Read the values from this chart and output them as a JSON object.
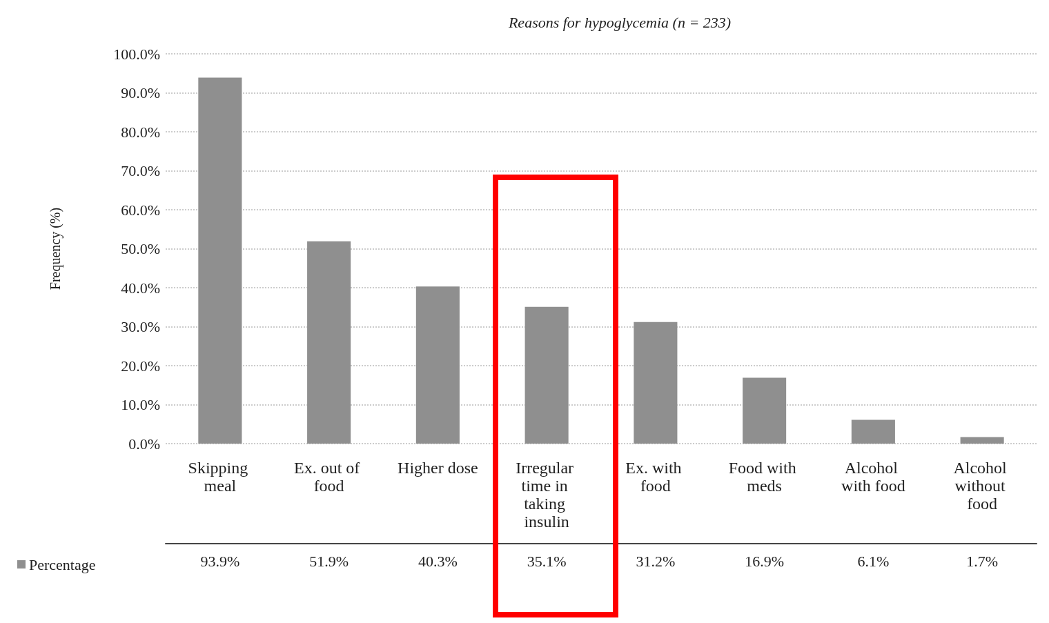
{
  "chart_data": {
    "type": "bar",
    "title": "Reasons for hypoglycemia (n = 233)",
    "ylabel": "Frequency (%)",
    "categories": [
      "Skipping meal",
      "Ex. out of food",
      "Higher dose",
      "Irregular time in taking insulin",
      "Ex. with food",
      "Food with meds",
      "Alcohol with food",
      "Alcohol without food"
    ],
    "series": [
      {
        "name": "Percentage",
        "color": "#8f8f8f",
        "values": [
          93.9,
          51.9,
          40.3,
          35.1,
          31.2,
          16.9,
          6.1,
          1.7
        ],
        "value_labels": [
          "93.9%",
          "51.9%",
          "40.3%",
          "35.1%",
          "31.2%",
          "16.9%",
          "6.1%",
          "1.7%"
        ]
      }
    ],
    "ylim": [
      0,
      100
    ],
    "yticks": [
      {
        "value": 0,
        "label": "0.0%"
      },
      {
        "value": 10,
        "label": "10.0%"
      },
      {
        "value": 20,
        "label": "20.0%"
      },
      {
        "value": 30,
        "label": "30.0%"
      },
      {
        "value": 40,
        "label": "40.0%"
      },
      {
        "value": 50,
        "label": "50.0%"
      },
      {
        "value": 60,
        "label": "60.0%"
      },
      {
        "value": 70,
        "label": "70.0%"
      },
      {
        "value": 80,
        "label": "80.0%"
      },
      {
        "value": 90,
        "label": "90.0%"
      },
      {
        "value": 100,
        "label": "100.0%"
      }
    ],
    "grid": "y",
    "legend": "bottom left"
  }
}
